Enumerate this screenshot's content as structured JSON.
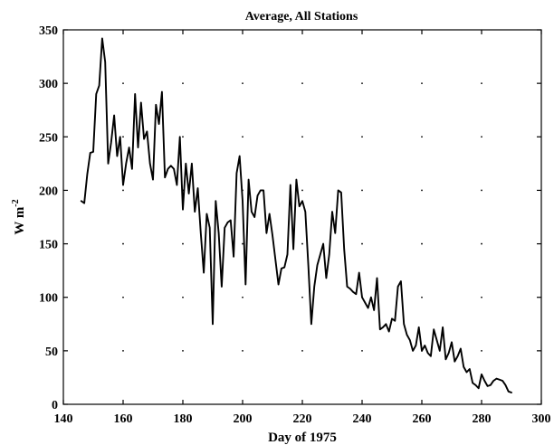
{
  "chart_data": {
    "type": "line",
    "title": "Average, All Stations",
    "xlabel": "Day of 1975",
    "ylabel_main": "W m",
    "ylabel_sup": "-2",
    "xlim": [
      140,
      300
    ],
    "ylim": [
      0,
      350
    ],
    "xticks": [
      140,
      160,
      180,
      200,
      220,
      240,
      260,
      280,
      300
    ],
    "yticks": [
      0,
      50,
      100,
      150,
      200,
      250,
      300,
      350
    ],
    "xtick_labels": [
      "140",
      "160",
      "180",
      "200",
      "220",
      "240",
      "260",
      "280",
      "300"
    ],
    "ytick_labels": [
      "0",
      "50",
      "100",
      "150",
      "200",
      "250",
      "300",
      "350"
    ],
    "grid": "dotted",
    "legend": "none",
    "series": [
      {
        "color": "#000000",
        "x": [
          146,
          147,
          148,
          149,
          150,
          151,
          152,
          153,
          154,
          155,
          156,
          157,
          158,
          159,
          160,
          161,
          162,
          163,
          164,
          165,
          166,
          167,
          168,
          169,
          170,
          171,
          172,
          173,
          174,
          175,
          176,
          177,
          178,
          179,
          180,
          181,
          182,
          183,
          184,
          185,
          186,
          187,
          188,
          189,
          190,
          191,
          192,
          193,
          194,
          195,
          196,
          197,
          198,
          199,
          200,
          201,
          202,
          203,
          204,
          205,
          206,
          207,
          208,
          209,
          210,
          211,
          212,
          213,
          214,
          215,
          216,
          217,
          218,
          219,
          220,
          221,
          222,
          223,
          224,
          225,
          226,
          227,
          228,
          229,
          230,
          231,
          232,
          233,
          234,
          235,
          236,
          237,
          238,
          239,
          240,
          241,
          242,
          243,
          244,
          245,
          246,
          247,
          248,
          249,
          250,
          251,
          252,
          253,
          254,
          255,
          256,
          257,
          258,
          259,
          260,
          261,
          262,
          263,
          264,
          265,
          266,
          267,
          268,
          269,
          270,
          271,
          272,
          273,
          274,
          275,
          276,
          277,
          278,
          279,
          280,
          281,
          282,
          283,
          284,
          285,
          286,
          287,
          288,
          289,
          290
        ],
        "values": [
          190,
          188,
          215,
          235,
          236,
          290,
          298,
          342,
          320,
          225,
          245,
          270,
          232,
          250,
          205,
          225,
          240,
          220,
          290,
          240,
          282,
          248,
          255,
          225,
          210,
          280,
          262,
          292,
          212,
          220,
          223,
          220,
          205,
          250,
          182,
          225,
          197,
          225,
          180,
          202,
          160,
          123,
          178,
          165,
          75,
          190,
          160,
          110,
          165,
          170,
          172,
          138,
          216,
          232,
          190,
          112,
          210,
          180,
          175,
          195,
          200,
          200,
          160,
          178,
          158,
          135,
          112,
          127,
          128,
          140,
          205,
          145,
          210,
          185,
          190,
          180,
          130,
          75,
          110,
          130,
          140,
          150,
          118,
          140,
          180,
          160,
          200,
          198,
          145,
          110,
          108,
          105,
          103,
          123,
          100,
          95,
          90,
          100,
          88,
          118,
          70,
          72,
          75,
          68,
          80,
          78,
          110,
          115,
          75,
          65,
          60,
          50,
          55,
          72,
          50,
          55,
          48,
          45,
          70,
          60,
          50,
          72,
          42,
          48,
          58,
          40,
          45,
          52,
          35,
          30,
          33,
          20,
          18,
          15,
          28,
          22,
          17,
          18,
          22,
          24,
          23,
          22,
          18,
          12,
          11
        ]
      }
    ]
  }
}
